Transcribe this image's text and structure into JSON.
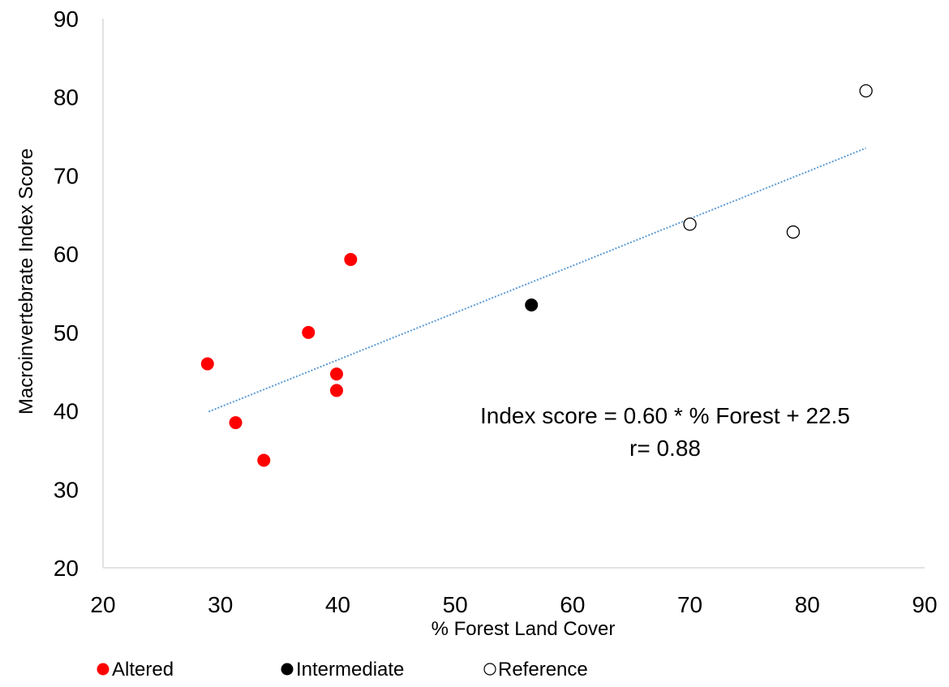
{
  "chart_data": {
    "type": "scatter",
    "xlabel": "% Forest Land Cover",
    "ylabel": "Macroinvertebrate Index Score",
    "xlim": [
      20,
      90
    ],
    "ylim": [
      20,
      90
    ],
    "xticks": [
      20,
      30,
      40,
      50,
      60,
      70,
      80,
      90
    ],
    "yticks": [
      20,
      30,
      40,
      50,
      60,
      70,
      80,
      90
    ],
    "grid": false,
    "legend_position": "bottom",
    "series": [
      {
        "name": "Altered",
        "marker": "filled-circle",
        "color": "#ff0000",
        "points": [
          {
            "x": 28.9,
            "y": 46.0
          },
          {
            "x": 31.3,
            "y": 38.5
          },
          {
            "x": 33.7,
            "y": 33.7
          },
          {
            "x": 37.5,
            "y": 50.0
          },
          {
            "x": 39.9,
            "y": 44.7
          },
          {
            "x": 39.9,
            "y": 42.6
          },
          {
            "x": 41.1,
            "y": 59.3
          }
        ]
      },
      {
        "name": "Intermediate",
        "marker": "filled-circle",
        "color": "#000000",
        "points": [
          {
            "x": 56.5,
            "y": 53.5
          }
        ]
      },
      {
        "name": "Reference",
        "marker": "open-circle",
        "color": "#000000",
        "points": [
          {
            "x": 70.0,
            "y": 63.8
          },
          {
            "x": 78.8,
            "y": 62.8
          },
          {
            "x": 85.0,
            "y": 80.8
          }
        ]
      }
    ],
    "trendline": {
      "style": "dotted",
      "color": "#5b9bd5",
      "slope": 0.6,
      "intercept": 22.5,
      "x_range": [
        29,
        85
      ]
    },
    "annotations": [
      "Index score = 0.60 * % Forest + 22.5",
      "r= 0.88"
    ]
  }
}
